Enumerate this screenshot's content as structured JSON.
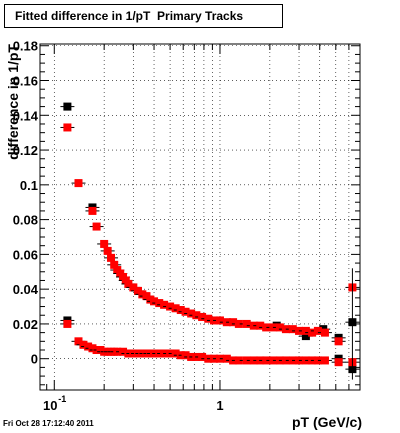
{
  "chart_data": {
    "type": "scatter",
    "title": "Fitted difference in 1/pT  Primary Tracks",
    "xlabel": "pT (GeV/c)",
    "ylabel": "difference in 1/pT",
    "xscale": "log",
    "xlim": [
      0.082,
      7.0
    ],
    "ylim": [
      -0.018,
      0.181
    ],
    "grid": true,
    "x_tick_labels": [
      "10",
      "-1",
      "1"
    ],
    "y_tick_labels": [
      "0",
      "0.02",
      "0.04",
      "0.06",
      "0.08",
      "0.1",
      "0.12",
      "0.14",
      "0.16",
      "0.18"
    ],
    "y_ticks": [
      0,
      0.02,
      0.04,
      0.06,
      0.08,
      0.1,
      0.12,
      0.14,
      0.16,
      0.18
    ],
    "series": [
      {
        "color": "#000000",
        "points": [
          {
            "x": 0.12,
            "y": 0.145
          },
          {
            "x": 0.12,
            "y": 0.022
          },
          {
            "x": 0.17,
            "y": 0.087
          },
          {
            "x": 2.2,
            "y": 0.019
          },
          {
            "x": 3.3,
            "y": 0.013
          },
          {
            "x": 4.2,
            "y": 0.017
          },
          {
            "x": 5.2,
            "y": 0.012
          },
          {
            "x": 5.2,
            "y": 0.0
          },
          {
            "x": 6.3,
            "y": 0.021
          },
          {
            "x": 6.3,
            "y": -0.006
          }
        ]
      },
      {
        "color": "#ff0000",
        "points": [
          {
            "x": 0.12,
            "y": 0.133
          },
          {
            "x": 0.14,
            "y": 0.101
          },
          {
            "x": 0.17,
            "y": 0.085
          },
          {
            "x": 0.18,
            "y": 0.076
          },
          {
            "x": 0.2,
            "y": 0.066
          },
          {
            "x": 0.21,
            "y": 0.062
          },
          {
            "x": 0.22,
            "y": 0.058
          },
          {
            "x": 0.23,
            "y": 0.054
          },
          {
            "x": 0.24,
            "y": 0.051
          },
          {
            "x": 0.25,
            "y": 0.049
          },
          {
            "x": 0.26,
            "y": 0.047
          },
          {
            "x": 0.27,
            "y": 0.045
          },
          {
            "x": 0.28,
            "y": 0.043
          },
          {
            "x": 0.3,
            "y": 0.041
          },
          {
            "x": 0.32,
            "y": 0.039
          },
          {
            "x": 0.34,
            "y": 0.037
          },
          {
            "x": 0.36,
            "y": 0.036
          },
          {
            "x": 0.38,
            "y": 0.034
          },
          {
            "x": 0.4,
            "y": 0.033
          },
          {
            "x": 0.43,
            "y": 0.032
          },
          {
            "x": 0.46,
            "y": 0.031
          },
          {
            "x": 0.5,
            "y": 0.03
          },
          {
            "x": 0.54,
            "y": 0.029
          },
          {
            "x": 0.58,
            "y": 0.028
          },
          {
            "x": 0.62,
            "y": 0.027
          },
          {
            "x": 0.67,
            "y": 0.026
          },
          {
            "x": 0.72,
            "y": 0.025
          },
          {
            "x": 0.78,
            "y": 0.024
          },
          {
            "x": 0.85,
            "y": 0.023
          },
          {
            "x": 0.92,
            "y": 0.022
          },
          {
            "x": 1.0,
            "y": 0.022
          },
          {
            "x": 1.1,
            "y": 0.021
          },
          {
            "x": 1.2,
            "y": 0.021
          },
          {
            "x": 1.3,
            "y": 0.02
          },
          {
            "x": 1.45,
            "y": 0.02
          },
          {
            "x": 1.6,
            "y": 0.019
          },
          {
            "x": 1.75,
            "y": 0.019
          },
          {
            "x": 1.9,
            "y": 0.018
          },
          {
            "x": 2.1,
            "y": 0.018
          },
          {
            "x": 2.3,
            "y": 0.018
          },
          {
            "x": 2.5,
            "y": 0.017
          },
          {
            "x": 2.75,
            "y": 0.017
          },
          {
            "x": 3.0,
            "y": 0.016
          },
          {
            "x": 3.3,
            "y": 0.016
          },
          {
            "x": 3.6,
            "y": 0.015
          },
          {
            "x": 3.9,
            "y": 0.016
          },
          {
            "x": 4.3,
            "y": 0.015
          },
          {
            "x": 5.2,
            "y": 0.01
          },
          {
            "x": 6.3,
            "y": 0.041
          },
          {
            "x": 0.12,
            "y": 0.02
          },
          {
            "x": 0.14,
            "y": 0.01
          },
          {
            "x": 0.15,
            "y": 0.008
          },
          {
            "x": 0.16,
            "y": 0.007
          },
          {
            "x": 0.17,
            "y": 0.006
          },
          {
            "x": 0.18,
            "y": 0.005
          },
          {
            "x": 0.19,
            "y": 0.005
          },
          {
            "x": 0.2,
            "y": 0.004
          },
          {
            "x": 0.21,
            "y": 0.004
          },
          {
            "x": 0.22,
            "y": 0.004
          },
          {
            "x": 0.23,
            "y": 0.004
          },
          {
            "x": 0.24,
            "y": 0.004
          },
          {
            "x": 0.26,
            "y": 0.004
          },
          {
            "x": 0.28,
            "y": 0.003
          },
          {
            "x": 0.3,
            "y": 0.003
          },
          {
            "x": 0.32,
            "y": 0.003
          },
          {
            "x": 0.34,
            "y": 0.003
          },
          {
            "x": 0.36,
            "y": 0.003
          },
          {
            "x": 0.38,
            "y": 0.003
          },
          {
            "x": 0.4,
            "y": 0.003
          },
          {
            "x": 0.43,
            "y": 0.003
          },
          {
            "x": 0.46,
            "y": 0.003
          },
          {
            "x": 0.5,
            "y": 0.003
          },
          {
            "x": 0.54,
            "y": 0.003
          },
          {
            "x": 0.58,
            "y": 0.002
          },
          {
            "x": 0.62,
            "y": 0.002
          },
          {
            "x": 0.67,
            "y": 0.001
          },
          {
            "x": 0.72,
            "y": 0.001
          },
          {
            "x": 0.78,
            "y": 0.001
          },
          {
            "x": 0.85,
            "y": 0.0
          },
          {
            "x": 0.92,
            "y": 0.0
          },
          {
            "x": 1.0,
            "y": 0.0
          },
          {
            "x": 1.1,
            "y": 0.0
          },
          {
            "x": 1.2,
            "y": -0.001
          },
          {
            "x": 1.3,
            "y": -0.001
          },
          {
            "x": 1.45,
            "y": -0.001
          },
          {
            "x": 1.6,
            "y": -0.001
          },
          {
            "x": 1.75,
            "y": -0.001
          },
          {
            "x": 1.9,
            "y": -0.001
          },
          {
            "x": 2.1,
            "y": -0.001
          },
          {
            "x": 2.3,
            "y": -0.001
          },
          {
            "x": 2.5,
            "y": -0.001
          },
          {
            "x": 2.75,
            "y": -0.001
          },
          {
            "x": 3.0,
            "y": -0.001
          },
          {
            "x": 3.3,
            "y": -0.001
          },
          {
            "x": 3.6,
            "y": -0.001
          },
          {
            "x": 3.9,
            "y": -0.001
          },
          {
            "x": 4.3,
            "y": -0.001
          },
          {
            "x": 5.2,
            "y": -0.002
          },
          {
            "x": 6.3,
            "y": -0.002
          }
        ]
      }
    ]
  },
  "footer": {
    "timestamp": "Fri Oct 28 17:12:40 2011"
  }
}
